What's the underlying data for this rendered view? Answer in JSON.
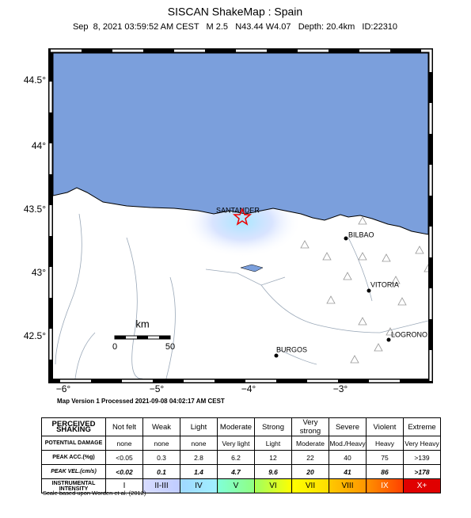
{
  "header": {
    "title": "SISCAN ShakeMap : Spain",
    "subtitle": "Sep  8, 2021 03:59:52 AM CEST   M 2.5   N43.44 W4.07   Depth: 20.4km   ID:22310"
  },
  "map": {
    "lat_labels": [
      "44.5°",
      "44°",
      "43.5°",
      "43°",
      "42.5°"
    ],
    "lon_labels": [
      "−6°",
      "−5°",
      "−4°",
      "−3°"
    ],
    "places": [
      "SANTANDER",
      "BILBAO",
      "VITORIA",
      "BURGOS",
      "LOGRONO"
    ],
    "scale": {
      "unit": "km",
      "start": "0",
      "end": "50"
    },
    "processed": "Map Version 1 Processed 2021-09-08 04:02:17 AM CEST"
  },
  "legend": {
    "rows": [
      {
        "label": "PERCEIVED SHAKING",
        "cells": [
          "Not felt",
          "Weak",
          "Light",
          "Moderate",
          "Strong",
          "Very strong",
          "Severe",
          "Violent",
          "Extreme"
        ]
      },
      {
        "label": "POTENTIAL DAMAGE",
        "cells": [
          "none",
          "none",
          "none",
          "Very light",
          "Light",
          "Moderate",
          "Mod./Heavy",
          "Heavy",
          "Very Heavy"
        ]
      },
      {
        "label": "PEAK ACC.(%g)",
        "cells": [
          "<0.05",
          "0.3",
          "2.8",
          "6.2",
          "12",
          "22",
          "40",
          "75",
          ">139"
        ]
      },
      {
        "label": "PEAK VEL.(cm/s)",
        "cells": [
          "<0.02",
          "0.1",
          "1.4",
          "4.7",
          "9.6",
          "20",
          "41",
          "86",
          ">178"
        ]
      },
      {
        "label": "INSTRUMENTAL INTENSITY",
        "cells": [
          "I",
          "II-III",
          "IV",
          "V",
          "VI",
          "VII",
          "VIII",
          "IX",
          "X+"
        ]
      }
    ],
    "footnote": "Scale based upon Worden et al. (2012)"
  }
}
